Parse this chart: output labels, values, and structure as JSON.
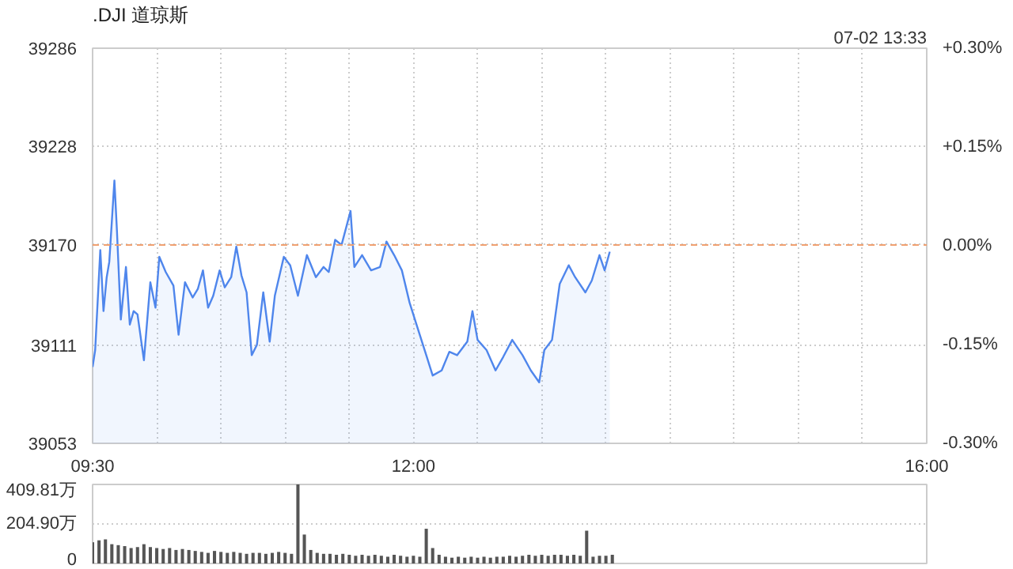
{
  "chart_data": [
    {
      "type": "area",
      "title": ".DJI 道琼斯",
      "annotations": [
        "07-02 13:33"
      ],
      "xlim": [
        9.5,
        16
      ],
      "xticks": [
        {
          "value": 9.5,
          "label": "09:30"
        },
        {
          "value": 10,
          "label": null
        },
        {
          "value": 10.5,
          "label": null
        },
        {
          "value": 11,
          "label": null
        },
        {
          "value": 11.5,
          "label": null
        },
        {
          "value": 12,
          "label": "12:00"
        },
        {
          "value": 12.5,
          "label": null
        },
        {
          "value": 13,
          "label": null
        },
        {
          "value": 13.5,
          "label": null
        },
        {
          "value": 14,
          "label": null
        },
        {
          "value": 14.5,
          "label": null
        },
        {
          "value": 15,
          "label": null
        },
        {
          "value": 15.5,
          "label": null
        },
        {
          "value": 16,
          "label": "16:00"
        }
      ],
      "ylim": [
        39053,
        39286
      ],
      "yticks": [
        39053,
        39111,
        39170,
        39228,
        39286
      ],
      "y2lim": [
        -0.3,
        0.3
      ],
      "y2ticks": [
        {
          "value": -0.3,
          "label": "-0.30%"
        },
        {
          "value": -0.15,
          "label": "-0.15%"
        },
        {
          "value": 0,
          "label": "0.00%"
        },
        {
          "value": 0.15,
          "label": "+0.15%"
        },
        {
          "value": 0.3,
          "label": "+0.30%"
        }
      ],
      "grid": true,
      "ref_lines": [
        {
          "axis": "y",
          "value": 39170,
          "color": "#f0a070",
          "line_style": "dashed"
        }
      ],
      "series": [
        {
          "color": "#4f86ec",
          "x": [
            9.5,
            9.52,
            9.56,
            9.585,
            9.61,
            9.63,
            9.67,
            9.69,
            9.72,
            9.76,
            9.79,
            9.82,
            9.85,
            9.9,
            9.95,
            9.99,
            10.02,
            10.07,
            10.13,
            10.17,
            10.22,
            10.28,
            10.32,
            10.36,
            10.4,
            10.44,
            10.49,
            10.53,
            10.58,
            10.62,
            10.66,
            10.7,
            10.74,
            10.78,
            10.83,
            10.88,
            10.92,
            10.99,
            11.04,
            11.1,
            11.17,
            11.24,
            11.3,
            11.34,
            11.39,
            11.44,
            11.51,
            11.54,
            11.6,
            11.67,
            11.74,
            11.79,
            11.85,
            11.91,
            11.97,
            12.02,
            12.1,
            12.15,
            12.22,
            12.28,
            12.34,
            12.42,
            12.46,
            12.5,
            12.57,
            12.64,
            12.7,
            12.77,
            12.85,
            12.915,
            12.98,
            13.02,
            13.08,
            13.14,
            13.21,
            13.26,
            13.34,
            13.39,
            13.45,
            13.49,
            13.53
          ],
          "values": [
            39098,
            39108,
            39167,
            39131,
            39151,
            39160,
            39208,
            39178,
            39126,
            39157,
            39123,
            39131,
            39129,
            39102,
            39148,
            39133,
            39163,
            39154,
            39146,
            39117,
            39148,
            39139,
            39144,
            39155,
            39133,
            39140,
            39155,
            39145,
            39151,
            39169,
            39152,
            39142,
            39105,
            39111,
            39142,
            39113,
            39140,
            39163,
            39158,
            39140,
            39164,
            39151,
            39157,
            39154,
            39173,
            39170,
            39190,
            39157,
            39164,
            39155,
            39157,
            39172,
            39164,
            39155,
            39136,
            39124,
            39105,
            39093,
            39096,
            39107,
            39105,
            39113,
            39131,
            39114,
            39108,
            39096,
            39104,
            39114,
            39105,
            39096,
            39089,
            39108,
            39114,
            39147,
            39158,
            39151,
            39142,
            39149,
            39164,
            39155,
            39166
          ]
        }
      ]
    },
    {
      "type": "bar",
      "grid": "y",
      "xlim": [
        9.5,
        16
      ],
      "ylim": [
        0,
        409.81
      ],
      "yticks": [
        0,
        {
          "value": 204.9,
          "label": "204.90万"
        },
        {
          "value": 409.81,
          "label": "409.81万"
        }
      ],
      "series": [
        {
          "color": "#555555",
          "x": [
            9.5,
            9.55,
            9.6,
            9.65,
            9.7,
            9.75,
            9.8,
            9.85,
            9.9,
            9.95,
            10.0,
            10.05,
            10.1,
            10.15,
            10.2,
            10.25,
            10.3,
            10.35,
            10.4,
            10.45,
            10.5,
            10.55,
            10.6,
            10.65,
            10.7,
            10.75,
            10.8,
            10.85,
            10.9,
            10.95,
            11.0,
            11.05,
            11.1,
            11.15,
            11.2,
            11.25,
            11.3,
            11.35,
            11.4,
            11.45,
            11.5,
            11.55,
            11.6,
            11.65,
            11.7,
            11.75,
            11.8,
            11.85,
            11.9,
            11.95,
            12.0,
            12.05,
            12.1,
            12.15,
            12.2,
            12.25,
            12.3,
            12.35,
            12.4,
            12.45,
            12.5,
            12.55,
            12.6,
            12.65,
            12.7,
            12.75,
            12.8,
            12.85,
            12.9,
            12.95,
            13.0,
            13.05,
            13.1,
            13.15,
            13.2,
            13.25,
            13.3,
            13.35,
            13.4,
            13.45,
            13.5,
            13.55
          ],
          "values": [
            110,
            120,
            125,
            100,
            95,
            90,
            80,
            85,
            100,
            85,
            80,
            75,
            80,
            70,
            75,
            70,
            65,
            60,
            55,
            65,
            60,
            55,
            60,
            55,
            50,
            55,
            55,
            50,
            55,
            60,
            55,
            50,
            409.81,
            150,
            70,
            55,
            50,
            50,
            45,
            50,
            45,
            40,
            45,
            40,
            45,
            40,
            35,
            45,
            40,
            35,
            40,
            35,
            180,
            80,
            45,
            35,
            30,
            35,
            30,
            35,
            30,
            35,
            30,
            35,
            35,
            40,
            35,
            40,
            45,
            40,
            45,
            40,
            45,
            45,
            40,
            45,
            40,
            170,
            35,
            40,
            40,
            45
          ]
        }
      ]
    }
  ]
}
